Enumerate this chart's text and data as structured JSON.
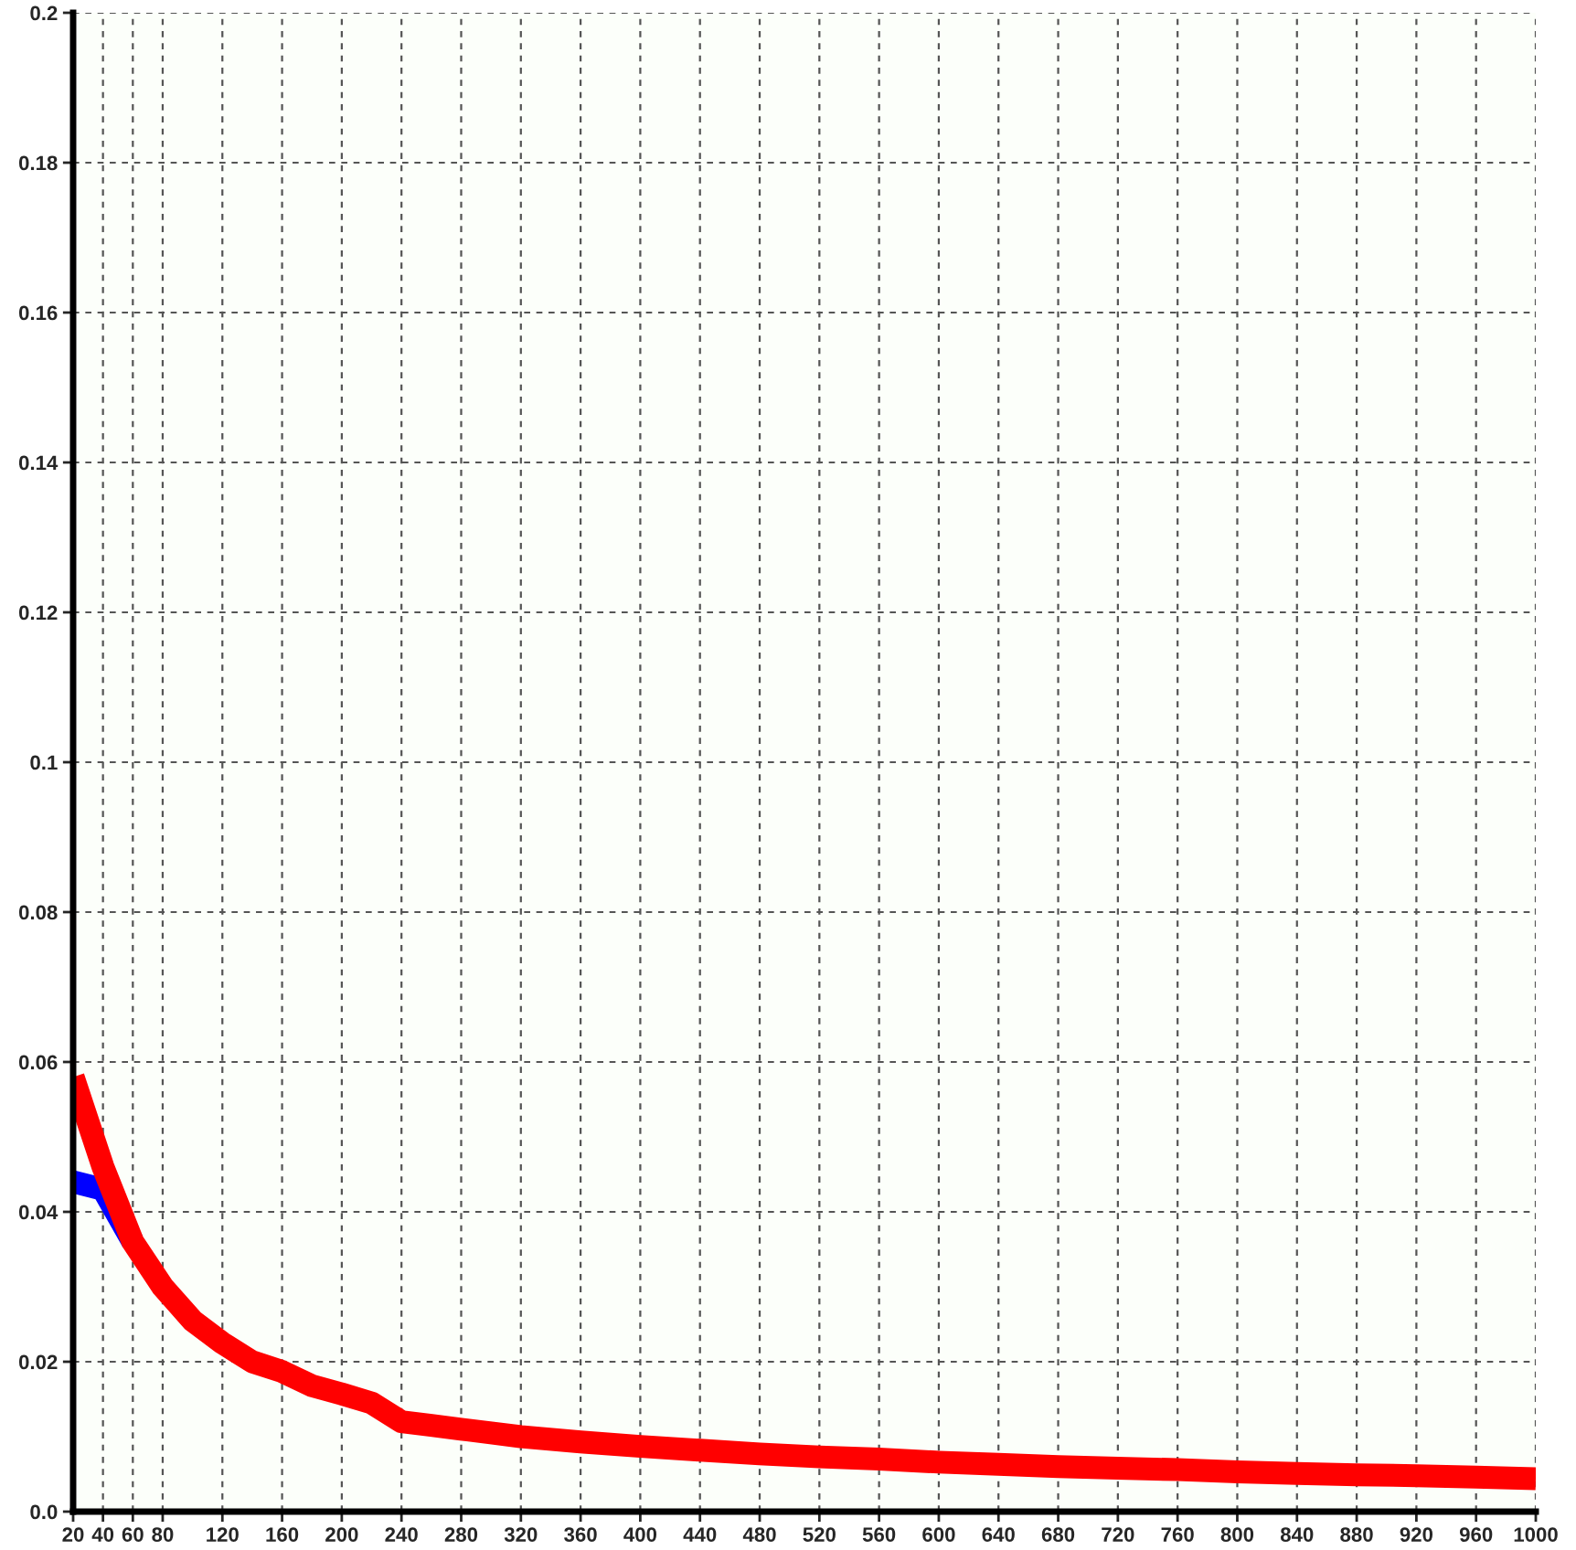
{
  "chart_data": {
    "type": "line",
    "xlim": [
      20,
      1000
    ],
    "ylim": [
      0,
      0.2
    ],
    "xticks": [
      20,
      40,
      60,
      80,
      120,
      160,
      200,
      240,
      280,
      320,
      360,
      400,
      440,
      480,
      520,
      560,
      600,
      640,
      680,
      720,
      760,
      800,
      840,
      880,
      920,
      960,
      1000
    ],
    "yticks": [
      {
        "value": 0,
        "label": "0.0"
      },
      0.02,
      0.04,
      0.06,
      0.08,
      0.1,
      0.12,
      0.14,
      0.16,
      0.18,
      0.2
    ],
    "grid": true,
    "marker": "none",
    "line_style": "solid",
    "series": [
      {
        "color": "#0000ff",
        "x": [
          20,
          40,
          60
        ],
        "values": [
          0.044,
          0.043,
          0.036
        ]
      },
      {
        "color": "#ff0000",
        "x": [
          20,
          40,
          60,
          80,
          100,
          120,
          140,
          160,
          180,
          200,
          220,
          240,
          260,
          280,
          300,
          320,
          360,
          400,
          440,
          480,
          520,
          560,
          600,
          640,
          680,
          720,
          760,
          800,
          840,
          880,
          920,
          960,
          1000
        ],
        "values": [
          0.058,
          0.046,
          0.036,
          0.03,
          0.0255,
          0.0225,
          0.02,
          0.0187,
          0.0168,
          0.0157,
          0.0145,
          0.012,
          0.0115,
          0.011,
          0.0105,
          0.01,
          0.0093,
          0.0087,
          0.0082,
          0.0077,
          0.0073,
          0.007,
          0.0066,
          0.0063,
          0.006,
          0.0058,
          0.0056,
          0.0053,
          0.0051,
          0.0049,
          0.0048,
          0.0046,
          0.0044
        ]
      }
    ]
  }
}
